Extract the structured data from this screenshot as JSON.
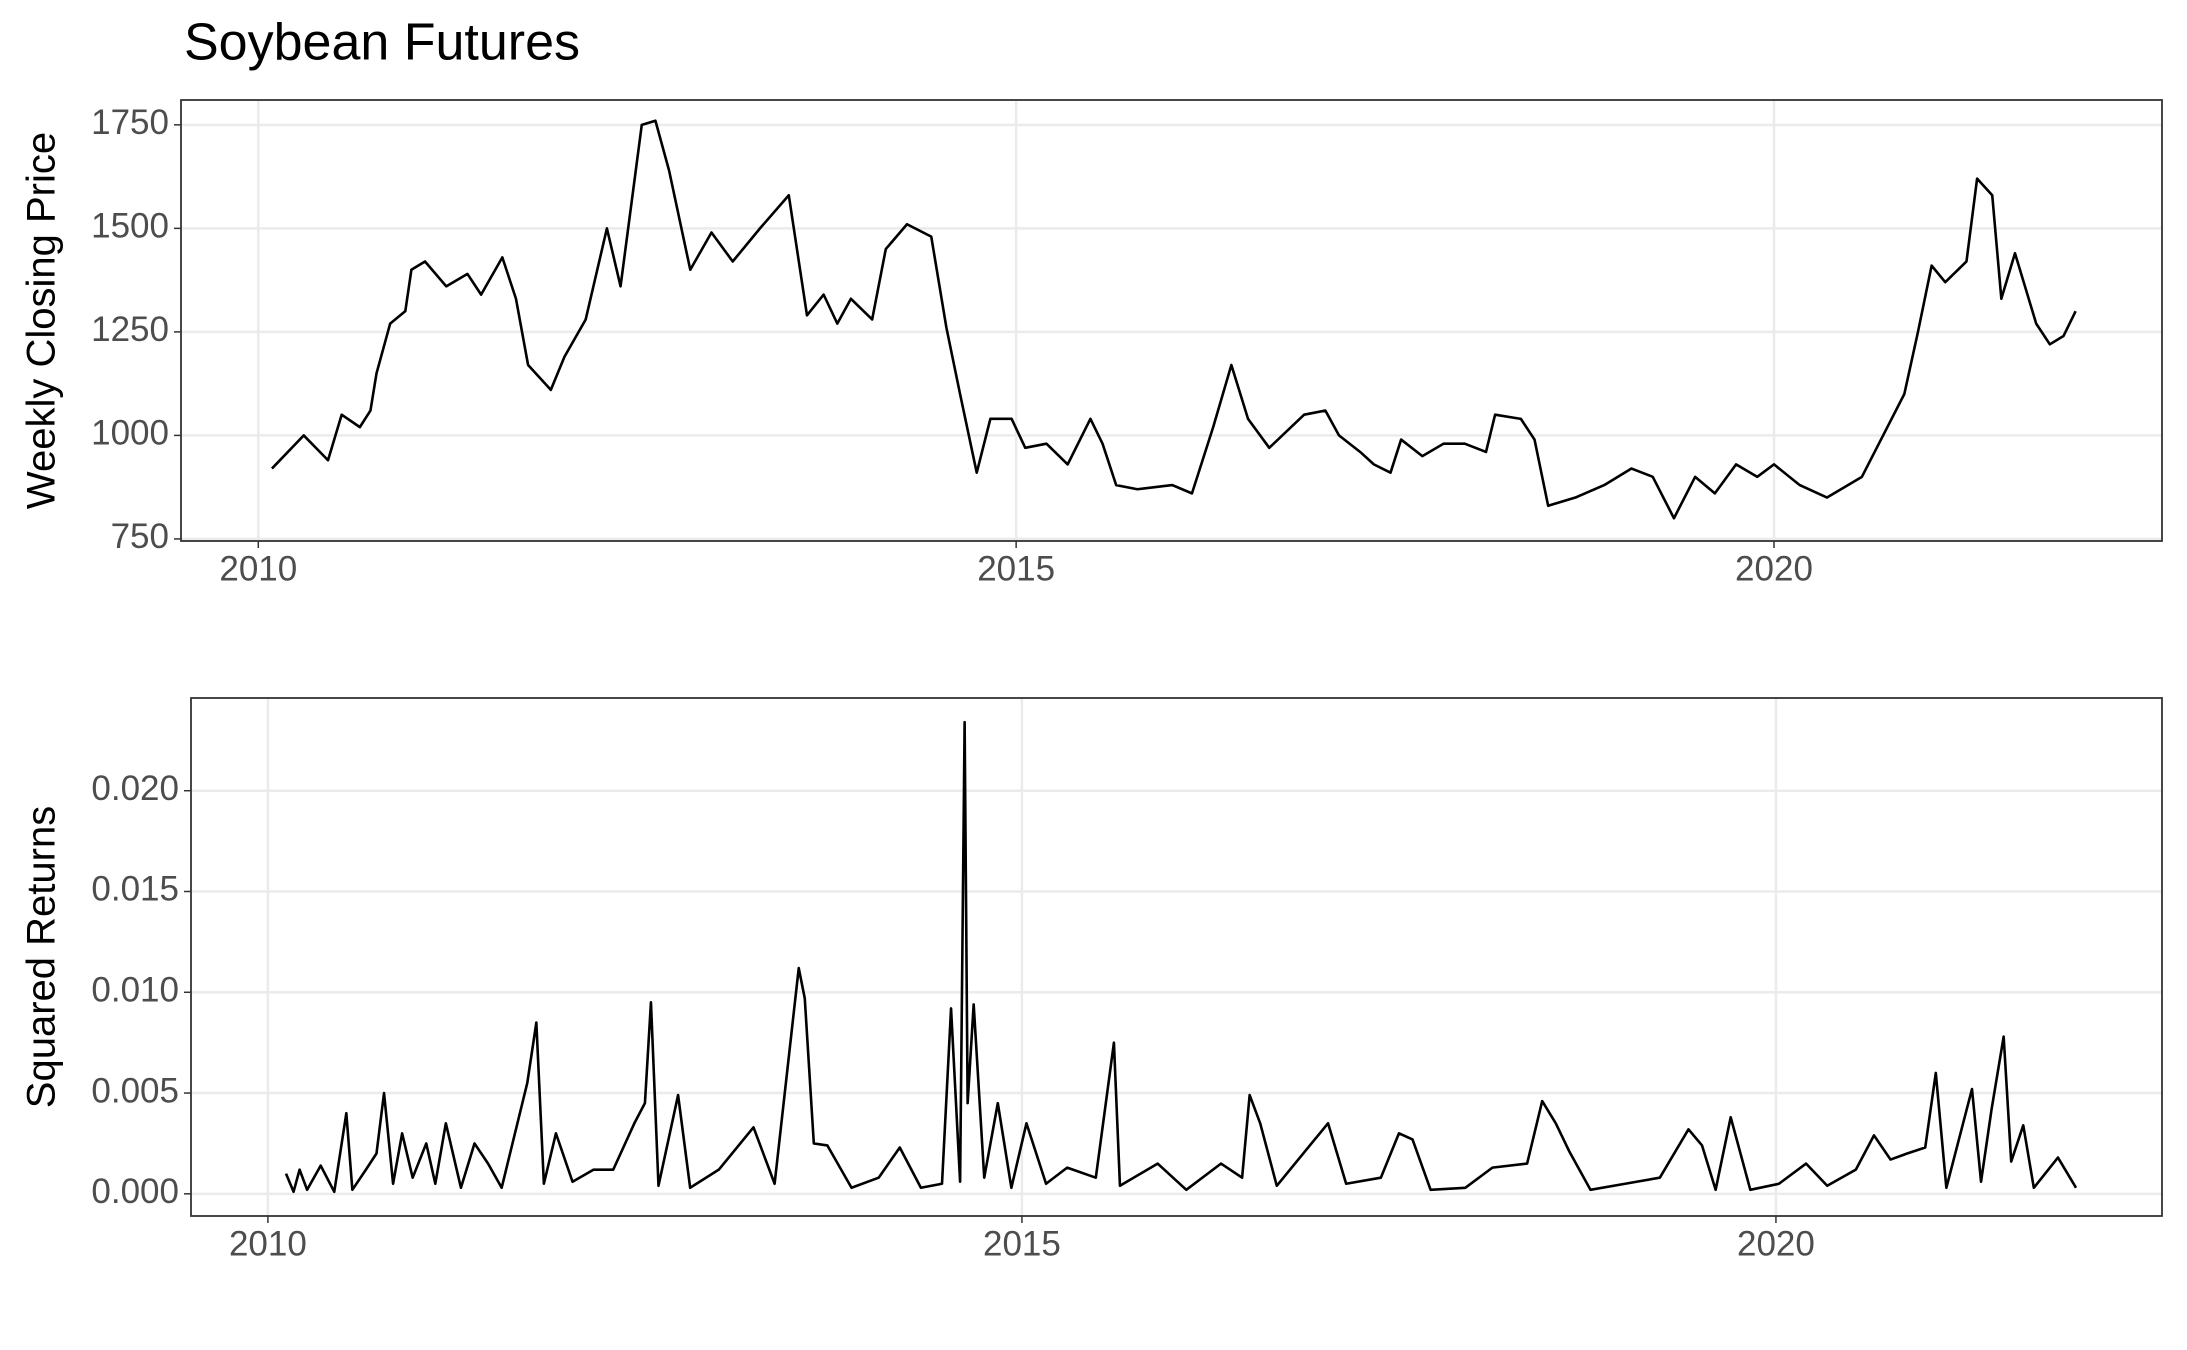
{
  "chart_data": [
    {
      "type": "line",
      "title": "Soybean Futures",
      "y_label": "Weekly Closing Price",
      "x": [
        2010.09,
        2010.3,
        2010.46,
        2010.55,
        2010.67,
        2010.74,
        2010.78,
        2010.87,
        2010.97,
        2011.01,
        2011.1,
        2011.24,
        2011.38,
        2011.47,
        2011.61,
        2011.7,
        2011.78,
        2011.93,
        2012.02,
        2012.16,
        2012.3,
        2012.39,
        2012.53,
        2012.62,
        2012.71,
        2012.85,
        2012.99,
        2013.13,
        2013.31,
        2013.5,
        2013.62,
        2013.73,
        2013.82,
        2013.91,
        2014.05,
        2014.14,
        2014.28,
        2014.44,
        2014.54,
        2014.63,
        2014.74,
        2014.83,
        2014.97,
        2015.06,
        2015.2,
        2015.34,
        2015.49,
        2015.57,
        2015.66,
        2015.8,
        2016.03,
        2016.16,
        2016.3,
        2016.42,
        2016.53,
        2016.67,
        2016.9,
        2017.04,
        2017.13,
        2017.27,
        2017.36,
        2017.47,
        2017.54,
        2017.68,
        2017.82,
        2017.96,
        2018.1,
        2018.16,
        2018.33,
        2018.42,
        2018.51,
        2018.69,
        2018.88,
        2019.06,
        2019.2,
        2019.34,
        2019.48,
        2019.61,
        2019.75,
        2019.89,
        2020.0,
        2020.17,
        2020.35,
        2020.58,
        2020.72,
        2020.86,
        2020.95,
        2021.04,
        2021.13,
        2021.27,
        2021.34,
        2021.44,
        2021.5,
        2021.59,
        2021.73,
        2021.82,
        2021.91,
        2021.99
      ],
      "series": [
        {
          "color": "#000000",
          "values": [
            920,
            1000,
            940,
            1050,
            1020,
            1060,
            1150,
            1270,
            1300,
            1400,
            1420,
            1360,
            1390,
            1340,
            1430,
            1330,
            1170,
            1110,
            1190,
            1280,
            1500,
            1360,
            1750,
            1760,
            1640,
            1400,
            1490,
            1420,
            1500,
            1580,
            1290,
            1340,
            1270,
            1330,
            1280,
            1450,
            1510,
            1480,
            1260,
            1100,
            910,
            1040,
            1040,
            970,
            980,
            930,
            1040,
            980,
            880,
            870,
            880,
            860,
            1020,
            1170,
            1040,
            970,
            1050,
            1060,
            1000,
            960,
            930,
            910,
            990,
            950,
            980,
            980,
            960,
            1050,
            1040,
            990,
            830,
            850,
            880,
            920,
            900,
            800,
            900,
            860,
            930,
            900,
            930,
            880,
            850,
            900,
            1000,
            1100,
            1250,
            1410,
            1370,
            1420,
            1620,
            1580,
            1330,
            1440,
            1270,
            1220,
            1240,
            1300
          ]
        }
      ],
      "xlim": [
        2009.49,
        2022.56
      ],
      "xticks": [
        2010,
        2015,
        2020
      ],
      "ylim": [
        745,
        1810
      ],
      "yticks": [
        750,
        1000,
        1250,
        1500,
        1750
      ],
      "grid": true
    },
    {
      "type": "line",
      "y_label": "Squared Returns",
      "x": [
        2010.12,
        2010.17,
        2010.21,
        2010.26,
        2010.35,
        2010.44,
        2010.52,
        2010.56,
        2010.65,
        2010.72,
        2010.77,
        2010.83,
        2010.89,
        2010.96,
        2011.05,
        2011.11,
        2011.18,
        2011.28,
        2011.37,
        2011.46,
        2011.55,
        2011.72,
        2011.78,
        2011.83,
        2011.91,
        2012.02,
        2012.16,
        2012.29,
        2012.43,
        2012.5,
        2012.54,
        2012.59,
        2012.72,
        2012.8,
        2012.99,
        2013.22,
        2013.36,
        2013.52,
        2013.56,
        2013.62,
        2013.71,
        2013.87,
        2014.05,
        2014.19,
        2014.33,
        2014.47,
        2014.53,
        2014.59,
        2014.62,
        2014.64,
        2014.68,
        2014.75,
        2014.84,
        2014.93,
        2015.03,
        2015.16,
        2015.3,
        2015.49,
        2015.61,
        2015.65,
        2015.9,
        2016.09,
        2016.32,
        2016.46,
        2016.51,
        2016.58,
        2016.69,
        2016.92,
        2017.03,
        2017.15,
        2017.38,
        2017.5,
        2017.59,
        2017.71,
        2017.94,
        2018.12,
        2018.35,
        2018.45,
        2018.54,
        2018.63,
        2018.77,
        2019.0,
        2019.23,
        2019.42,
        2019.51,
        2019.6,
        2019.7,
        2019.83,
        2020.02,
        2020.2,
        2020.34,
        2020.53,
        2020.65,
        2020.76,
        2020.87,
        2020.99,
        2021.06,
        2021.13,
        2021.3,
        2021.36,
        2021.43,
        2021.47,
        2021.51,
        2021.56,
        2021.64,
        2021.71,
        2021.87,
        2021.99
      ],
      "series": [
        {
          "color": "#000000",
          "values": [
            0.001,
            0.0001,
            0.0012,
            0.0002,
            0.0014,
            0.0001,
            0.004,
            0.0002,
            0.0012,
            0.002,
            0.005,
            0.0005,
            0.003,
            0.0008,
            0.0025,
            0.0005,
            0.0035,
            0.0003,
            0.0025,
            0.0015,
            0.0003,
            0.0055,
            0.0085,
            0.0005,
            0.003,
            0.0006,
            0.0012,
            0.0012,
            0.0035,
            0.0045,
            0.0095,
            0.0004,
            0.0049,
            0.0003,
            0.0012,
            0.0033,
            0.0005,
            0.0112,
            0.0097,
            0.0025,
            0.0024,
            0.0003,
            0.0008,
            0.0023,
            0.0003,
            0.0005,
            0.0092,
            0.0006,
            0.0234,
            0.0045,
            0.0094,
            0.0008,
            0.0045,
            0.0003,
            0.0035,
            0.0005,
            0.0013,
            0.0008,
            0.0075,
            0.0004,
            0.0015,
            0.0002,
            0.0015,
            0.0008,
            0.0049,
            0.0035,
            0.0004,
            0.0025,
            0.0035,
            0.0005,
            0.0008,
            0.003,
            0.0027,
            0.0002,
            0.0003,
            0.0013,
            0.0015,
            0.0046,
            0.0035,
            0.0021,
            0.0002,
            0.0005,
            0.0008,
            0.0032,
            0.0024,
            0.0002,
            0.0038,
            0.0002,
            0.0005,
            0.0015,
            0.0004,
            0.0012,
            0.0029,
            0.0017,
            0.002,
            0.0023,
            0.006,
            0.0003,
            0.0052,
            0.0006,
            0.0042,
            0.006,
            0.0078,
            0.0016,
            0.0034,
            0.0003,
            0.0018,
            0.0003
          ]
        }
      ],
      "xlim": [
        2009.49,
        2022.56
      ],
      "xticks": [
        2010,
        2015,
        2020
      ],
      "ylim": [
        -0.0011,
        0.0246
      ],
      "yticks": [
        {
          "value": 0,
          "label": "0.000"
        },
        {
          "value": 0.005,
          "label": "0.005"
        },
        {
          "value": 0.01,
          "label": "0.010"
        },
        {
          "value": 0.015,
          "label": "0.015"
        },
        {
          "value": 0.02,
          "label": "0.020"
        }
      ],
      "grid": true
    }
  ]
}
